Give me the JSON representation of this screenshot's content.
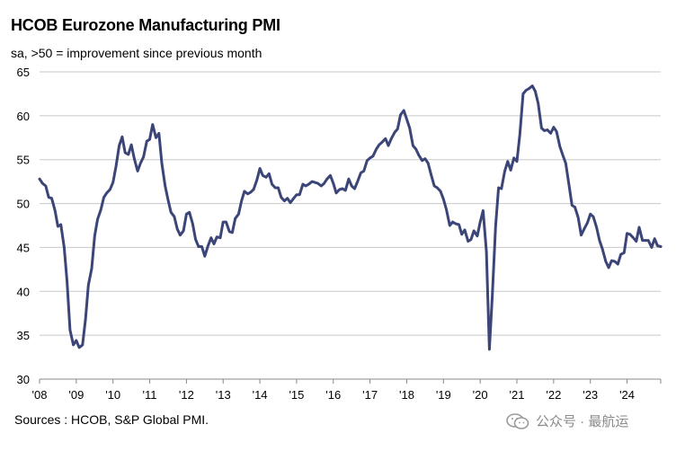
{
  "title": "HCOB Eurozone Manufacturing PMI",
  "subtitle": "sa, >50 = improvement  since previous month",
  "source": "Sources : HCOB, S&P Global PMI.",
  "watermark": "公众号 · 最航运",
  "chart_data": {
    "type": "line",
    "title": "HCOB Eurozone Manufacturing PMI",
    "xlabel": "",
    "ylabel": "",
    "ylim": [
      30,
      65
    ],
    "yticks": [
      30,
      35,
      40,
      45,
      50,
      55,
      60,
      65
    ],
    "xlim": [
      2008.0,
      2024.917
    ],
    "xticks": [
      {
        "year": 2008,
        "label": "'08"
      },
      {
        "year": 2009,
        "label": "'09"
      },
      {
        "year": 2010,
        "label": "'10"
      },
      {
        "year": 2011,
        "label": "'11"
      },
      {
        "year": 2012,
        "label": "'12"
      },
      {
        "year": 2013,
        "label": "'13"
      },
      {
        "year": 2014,
        "label": "'14"
      },
      {
        "year": 2015,
        "label": "'15"
      },
      {
        "year": 2016,
        "label": "'16"
      },
      {
        "year": 2017,
        "label": "'17"
      },
      {
        "year": 2018,
        "label": "'18"
      },
      {
        "year": 2019,
        "label": "'19"
      },
      {
        "year": 2020,
        "label": "'20"
      },
      {
        "year": 2021,
        "label": "'21"
      },
      {
        "year": 2022,
        "label": "'22"
      },
      {
        "year": 2023,
        "label": "'23"
      },
      {
        "year": 2024,
        "label": "'24"
      }
    ],
    "grid": true,
    "line_color": "#3b4577",
    "series": [
      {
        "name": "",
        "x": [
          2008.0,
          2008.08,
          2008.17,
          2008.25,
          2008.33,
          2008.42,
          2008.5,
          2008.58,
          2008.67,
          2008.75,
          2008.83,
          2008.92,
          2009.0,
          2009.08,
          2009.17,
          2009.25,
          2009.33,
          2009.42,
          2009.5,
          2009.58,
          2009.67,
          2009.75,
          2009.83,
          2009.92,
          2010.0,
          2010.08,
          2010.17,
          2010.25,
          2010.33,
          2010.42,
          2010.5,
          2010.58,
          2010.67,
          2010.75,
          2010.83,
          2010.92,
          2011.0,
          2011.08,
          2011.17,
          2011.25,
          2011.33,
          2011.42,
          2011.5,
          2011.58,
          2011.67,
          2011.75,
          2011.83,
          2011.92,
          2012.0,
          2012.08,
          2012.17,
          2012.25,
          2012.33,
          2012.42,
          2012.5,
          2012.58,
          2012.67,
          2012.75,
          2012.83,
          2012.92,
          2013.0,
          2013.08,
          2013.17,
          2013.25,
          2013.33,
          2013.42,
          2013.5,
          2013.58,
          2013.67,
          2013.75,
          2013.83,
          2013.92,
          2014.0,
          2014.08,
          2014.17,
          2014.25,
          2014.33,
          2014.42,
          2014.5,
          2014.58,
          2014.67,
          2014.75,
          2014.83,
          2014.92,
          2015.0,
          2015.08,
          2015.17,
          2015.25,
          2015.33,
          2015.42,
          2015.5,
          2015.58,
          2015.67,
          2015.75,
          2015.83,
          2015.92,
          2016.0,
          2016.08,
          2016.17,
          2016.25,
          2016.33,
          2016.42,
          2016.5,
          2016.58,
          2016.67,
          2016.75,
          2016.83,
          2016.92,
          2017.0,
          2017.08,
          2017.17,
          2017.25,
          2017.33,
          2017.42,
          2017.5,
          2017.58,
          2017.67,
          2017.75,
          2017.83,
          2017.92,
          2018.0,
          2018.08,
          2018.17,
          2018.25,
          2018.33,
          2018.42,
          2018.5,
          2018.58,
          2018.67,
          2018.75,
          2018.83,
          2018.92,
          2019.0,
          2019.08,
          2019.17,
          2019.25,
          2019.33,
          2019.42,
          2019.5,
          2019.58,
          2019.67,
          2019.75,
          2019.83,
          2019.92,
          2020.0,
          2020.08,
          2020.17,
          2020.25,
          2020.33,
          2020.42,
          2020.5,
          2020.58,
          2020.67,
          2020.75,
          2020.83,
          2020.92,
          2021.0,
          2021.08,
          2021.17,
          2021.25,
          2021.33,
          2021.42,
          2021.5,
          2021.58,
          2021.67,
          2021.75,
          2021.83,
          2021.92,
          2022.0,
          2022.08,
          2022.17,
          2022.25,
          2022.33,
          2022.42,
          2022.5,
          2022.58,
          2022.67,
          2022.75,
          2022.83,
          2022.92,
          2023.0,
          2023.08,
          2023.17,
          2023.25,
          2023.33,
          2023.42,
          2023.5,
          2023.58,
          2023.67,
          2023.75,
          2023.83,
          2023.92,
          2024.0,
          2024.08,
          2024.17,
          2024.25,
          2024.33,
          2024.42,
          2024.5,
          2024.58,
          2024.67,
          2024.75,
          2024.83,
          2024.92
        ],
        "values": [
          52.8,
          52.3,
          52.0,
          50.7,
          50.6,
          49.2,
          47.4,
          47.6,
          45.0,
          41.1,
          35.6,
          33.9,
          34.4,
          33.6,
          33.9,
          36.8,
          40.7,
          42.6,
          46.3,
          48.2,
          49.3,
          50.7,
          51.2,
          51.6,
          52.4,
          54.2,
          56.6,
          57.6,
          55.8,
          55.6,
          56.7,
          55.1,
          53.7,
          54.6,
          55.3,
          57.1,
          57.3,
          59.0,
          57.5,
          58.0,
          54.6,
          52.0,
          50.4,
          49.0,
          48.5,
          47.1,
          46.4,
          46.9,
          48.8,
          49.0,
          47.7,
          45.9,
          45.1,
          45.1,
          44.0,
          45.1,
          46.1,
          45.4,
          46.2,
          46.1,
          47.9,
          47.9,
          46.8,
          46.7,
          48.3,
          48.8,
          50.3,
          51.4,
          51.1,
          51.3,
          51.6,
          52.7,
          54.0,
          53.2,
          53.0,
          53.4,
          52.2,
          51.8,
          51.8,
          50.7,
          50.3,
          50.6,
          50.1,
          50.6,
          51.0,
          51.0,
          52.2,
          52.0,
          52.2,
          52.5,
          52.4,
          52.3,
          52.0,
          52.3,
          52.8,
          53.2,
          52.3,
          51.2,
          51.6,
          51.7,
          51.5,
          52.8,
          52.0,
          51.7,
          52.6,
          53.5,
          53.7,
          54.9,
          55.2,
          55.4,
          56.2,
          56.7,
          57.0,
          57.4,
          56.6,
          57.4,
          58.1,
          58.5,
          60.1,
          60.6,
          59.6,
          58.6,
          56.6,
          56.2,
          55.5,
          54.9,
          55.1,
          54.6,
          53.2,
          52.0,
          51.8,
          51.4,
          50.5,
          49.3,
          47.5,
          47.9,
          47.7,
          47.6,
          46.5,
          47.0,
          45.7,
          45.9,
          46.9,
          46.3,
          47.9,
          49.2,
          44.5,
          33.4,
          39.4,
          47.4,
          51.8,
          51.7,
          53.7,
          54.8,
          53.8,
          55.2,
          54.8,
          57.9,
          62.5,
          62.9,
          63.1,
          63.4,
          62.8,
          61.4,
          58.6,
          58.3,
          58.4,
          58.0,
          58.7,
          58.2,
          56.5,
          55.5,
          54.6,
          52.1,
          49.8,
          49.6,
          48.4,
          46.4,
          47.1,
          47.8,
          48.8,
          48.5,
          47.3,
          45.8,
          44.8,
          43.4,
          42.7,
          43.5,
          43.4,
          43.1,
          44.2,
          44.4,
          46.6,
          46.5,
          46.1,
          45.7,
          47.3,
          45.8,
          45.8,
          45.8,
          45.0,
          46.0,
          45.2,
          45.1
        ]
      }
    ]
  }
}
